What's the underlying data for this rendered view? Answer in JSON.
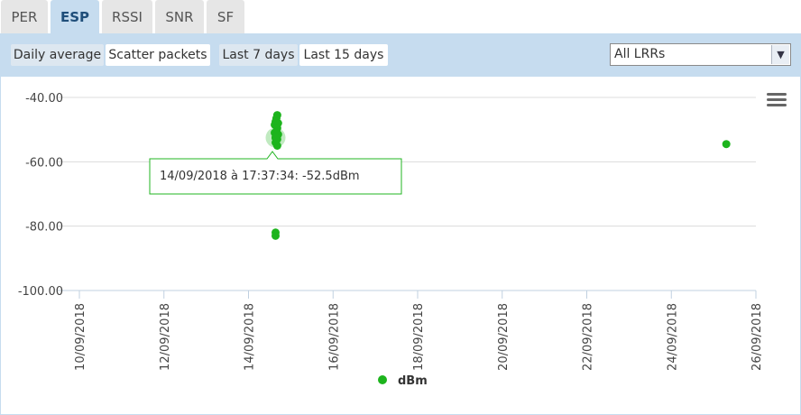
{
  "tabs": [
    {
      "label": "PER",
      "active": false
    },
    {
      "label": "ESP",
      "active": true
    },
    {
      "label": "RSSI",
      "active": false
    },
    {
      "label": "SNR",
      "active": false
    },
    {
      "label": "SF",
      "active": false
    }
  ],
  "toolbar": {
    "mode_buttons": [
      "Daily average",
      "Scatter packets"
    ],
    "selected_mode": "Scatter packets",
    "range_buttons": [
      "Last 7 days",
      "Last 15 days"
    ],
    "selected_range": "Last 15 days",
    "lrr_select": {
      "value": "All LRRs"
    }
  },
  "menu_icon": "hamburger-menu-icon",
  "colors": {
    "series": "#1db41d",
    "accent": "#c6dcef",
    "tab_active_text": "#1f4e7a"
  },
  "chart_data": {
    "type": "scatter",
    "title": "",
    "xlabel": "",
    "ylabel": "",
    "x_type": "date",
    "xlim": [
      "2018-09-10",
      "2018-09-26"
    ],
    "ylim": [
      -100,
      -40
    ],
    "y_ticks": [
      "-40.00",
      "-60.00",
      "-80.00",
      "-100.00"
    ],
    "x_ticks": [
      "10/09/2018",
      "12/09/2018",
      "14/09/2018",
      "16/09/2018",
      "18/09/2018",
      "20/09/2018",
      "22/09/2018",
      "24/09/2018",
      "26/09/2018"
    ],
    "grid": "horizontal",
    "series": [
      {
        "name": "dBm",
        "points": [
          {
            "x": 14.68,
            "y": -45.5
          },
          {
            "x": 14.66,
            "y": -46.5
          },
          {
            "x": 14.64,
            "y": -47.5
          },
          {
            "x": 14.7,
            "y": -48.0
          },
          {
            "x": 14.62,
            "y": -48.5
          },
          {
            "x": 14.68,
            "y": -49.5
          },
          {
            "x": 14.66,
            "y": -50.5
          },
          {
            "x": 14.62,
            "y": -51.0
          },
          {
            "x": 14.7,
            "y": -51.5
          },
          {
            "x": 14.64,
            "y": -52.5
          },
          {
            "x": 14.68,
            "y": -53.0
          },
          {
            "x": 14.64,
            "y": -54.0
          },
          {
            "x": 14.68,
            "y": -55.0
          },
          {
            "x": 14.64,
            "y": -82.0
          },
          {
            "x": 14.64,
            "y": -83.0
          },
          {
            "x": 25.3,
            "y": -54.5
          }
        ]
      }
    ],
    "hover": {
      "x": 14.64,
      "y": -52.5,
      "label": "14/09/2018 à 17:37:34: -52.5dBm"
    },
    "legend": {
      "label": "dBm",
      "placement": "bottom-center"
    }
  }
}
